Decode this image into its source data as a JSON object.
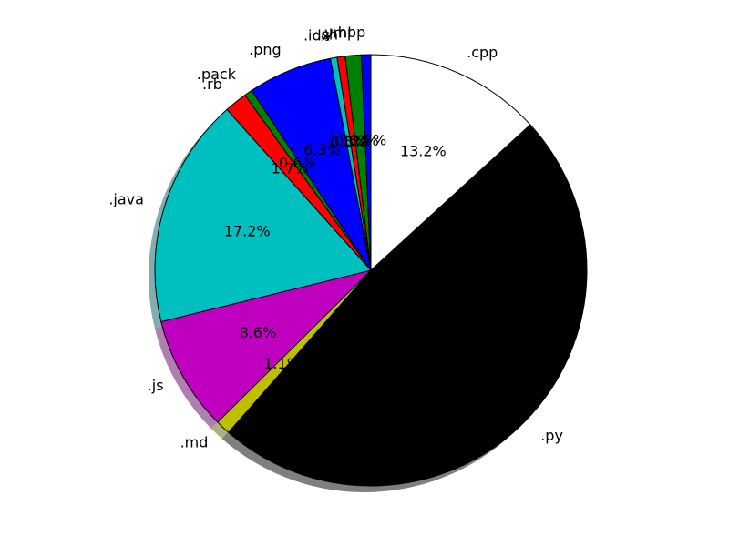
{
  "chart_data": {
    "type": "pie",
    "labels": [
      ".cpp",
      ".py",
      ".md",
      ".js",
      ".java",
      ".rb",
      ".pack",
      ".png",
      ".idx",
      ".sh",
      ".yml",
      ".hpp"
    ],
    "values": [
      13.2,
      48.2,
      1.1,
      8.6,
      17.2,
      1.7,
      0.6,
      6.3,
      0.5,
      0.6,
      1.2,
      0.7
    ],
    "percent_labels": [
      "13.2%",
      "48.2%",
      "1.1%",
      "8.6%",
      "17.2%",
      "1.7%",
      "0.6%",
      "6.3%",
      "0.5%",
      "0.6%",
      "1.2%",
      "0.7%"
    ],
    "colors": [
      "#ffffff",
      "#000000",
      "#bfbf00",
      "#bf00bf",
      "#00bfbf",
      "#ff0000",
      "#008000",
      "#0000ff",
      "#00bfbf",
      "#ff0000",
      "#008000",
      "#0000ff"
    ],
    "start_angle_deg": 90,
    "direction": "clockwise",
    "shadow": true
  }
}
